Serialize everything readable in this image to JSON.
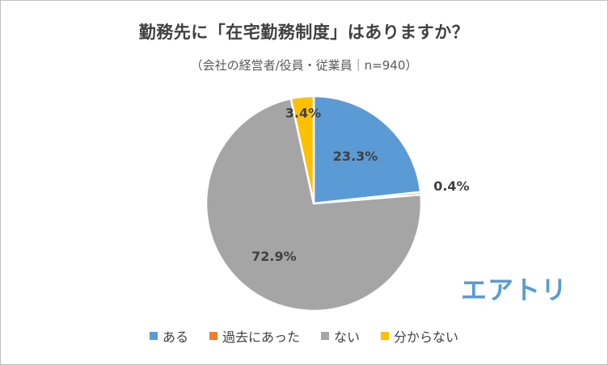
{
  "chart_data": {
    "type": "pie",
    "title": "勤務先に「在宅勤務制度」はありますか？",
    "subtitle": "（会社の経営者/役員・従業員｜n=940）",
    "categories": [
      "ある",
      "過去にあった",
      "ない",
      "分からない"
    ],
    "values": [
      23.3,
      0.4,
      72.9,
      3.4
    ],
    "labels": [
      "23.3%",
      "0.4%",
      "72.9%",
      "3.4%"
    ],
    "colors": [
      "#5b9bd5",
      "#ed7d31",
      "#a5a5a5",
      "#ffc000"
    ],
    "start": "12 o'clock, clockwise",
    "legend": "bottom"
  },
  "logo": "エアトリ"
}
